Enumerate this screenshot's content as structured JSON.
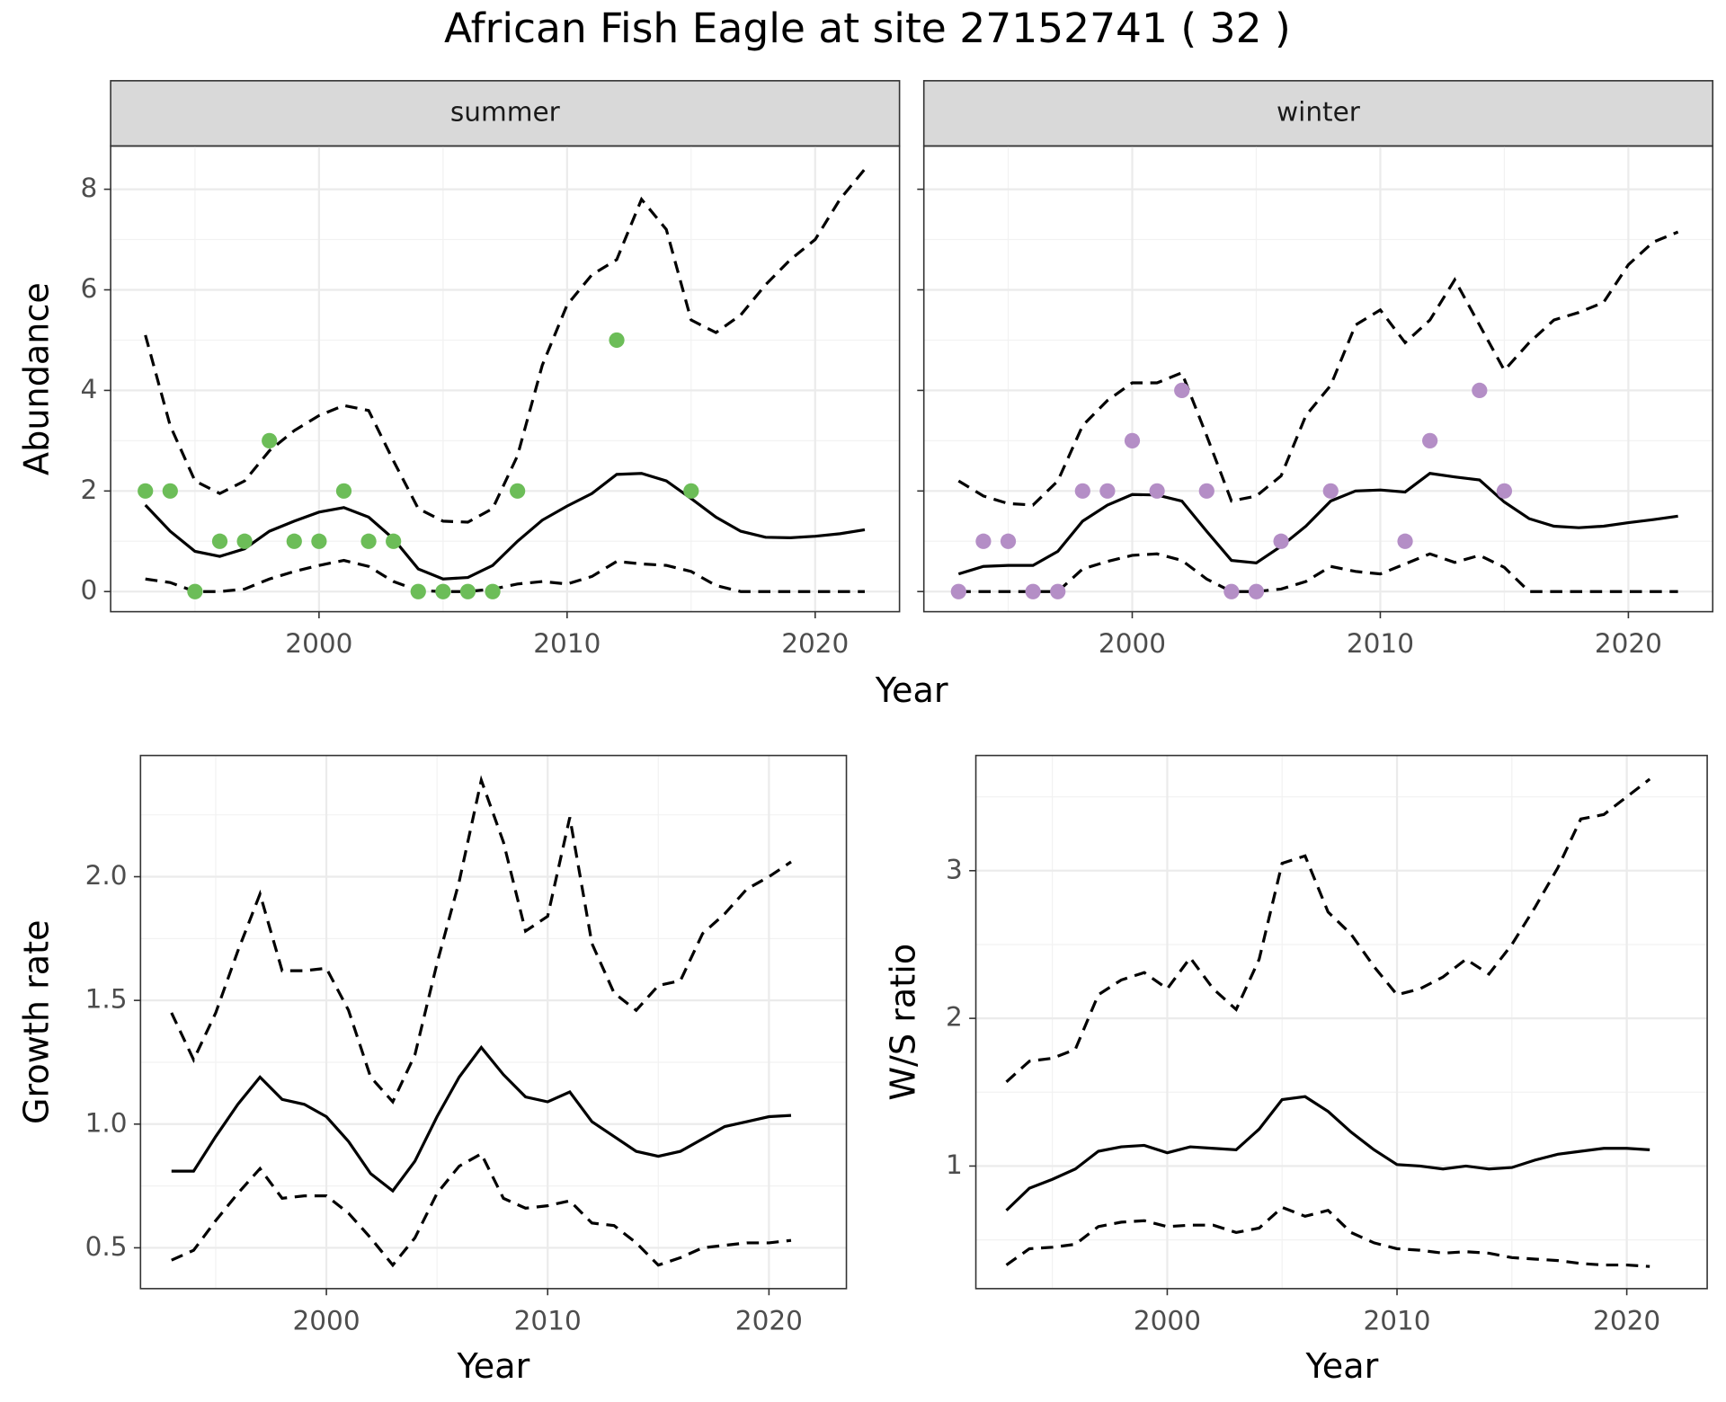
{
  "title": "African Fish Eagle at site 27152741 ( 32 )",
  "chart_data": [
    {
      "type": "line",
      "strip": "summer",
      "xlabel": "Year",
      "ylabel": "Abundance",
      "xlim": [
        1991.6,
        2023.4
      ],
      "xticks": [
        2000,
        2010,
        2020
      ],
      "ylim": [
        -0.4,
        8.86
      ],
      "yticks": [
        0,
        2,
        4,
        6,
        8
      ],
      "grid": true,
      "x": [
        1993,
        1994,
        1995,
        1996,
        1997,
        1998,
        1999,
        2000,
        2001,
        2002,
        2003,
        2004,
        2005,
        2006,
        2007,
        2008,
        2009,
        2010,
        2011,
        2012,
        2013,
        2014,
        2015,
        2016,
        2017,
        2018,
        2019,
        2020,
        2021,
        2022
      ],
      "series": [
        {
          "style": "solid",
          "color": "#000000",
          "values": [
            1.72,
            1.2,
            0.8,
            0.7,
            0.85,
            1.2,
            1.4,
            1.58,
            1.67,
            1.48,
            1.05,
            0.45,
            0.25,
            0.28,
            0.52,
            1.0,
            1.42,
            1.7,
            1.95,
            2.33,
            2.35,
            2.2,
            1.85,
            1.48,
            1.2,
            1.08,
            1.07,
            1.1,
            1.15,
            1.23
          ]
        },
        {
          "style": "dashed",
          "color": "#000000",
          "values": [
            5.1,
            3.3,
            2.2,
            1.95,
            2.2,
            2.8,
            3.2,
            3.5,
            3.7,
            3.6,
            2.6,
            1.65,
            1.4,
            1.38,
            1.65,
            2.7,
            4.5,
            5.7,
            6.3,
            6.6,
            7.8,
            7.2,
            5.4,
            5.15,
            5.5,
            6.1,
            6.6,
            7.0,
            7.8,
            8.4
          ]
        },
        {
          "style": "dashed",
          "color": "#000000",
          "values": [
            0.25,
            0.18,
            0,
            0,
            0.05,
            0.25,
            0.4,
            0.52,
            0.62,
            0.5,
            0.2,
            0.02,
            0,
            0,
            0.05,
            0.15,
            0.2,
            0.15,
            0.3,
            0.6,
            0.55,
            0.52,
            0.4,
            0.12,
            0,
            0,
            0,
            0,
            0,
            0
          ]
        },
        {
          "style": "points",
          "color": "#6cbd58",
          "values": [
            2,
            2,
            0,
            1,
            1,
            3,
            1,
            1,
            2,
            1,
            1,
            0,
            0,
            0,
            0,
            2,
            null,
            null,
            null,
            5,
            null,
            null,
            2,
            null,
            null,
            null,
            null,
            null,
            null,
            null
          ]
        }
      ]
    },
    {
      "type": "line",
      "strip": "winter",
      "xlim": [
        1991.6,
        2023.4
      ],
      "xticks": [
        2000,
        2010,
        2020
      ],
      "ylim": [
        -0.4,
        8.86
      ],
      "yticks": [
        0,
        2,
        4,
        6,
        8
      ],
      "grid": true,
      "x": [
        1993,
        1994,
        1995,
        1996,
        1997,
        1998,
        1999,
        2000,
        2001,
        2002,
        2003,
        2004,
        2005,
        2006,
        2007,
        2008,
        2009,
        2010,
        2011,
        2012,
        2013,
        2014,
        2015,
        2016,
        2017,
        2018,
        2019,
        2020,
        2021,
        2022
      ],
      "series": [
        {
          "style": "solid",
          "color": "#000000",
          "values": [
            0.35,
            0.5,
            0.52,
            0.52,
            0.8,
            1.4,
            1.72,
            1.93,
            1.92,
            1.8,
            1.2,
            0.62,
            0.57,
            0.9,
            1.3,
            1.8,
            2.0,
            2.02,
            1.98,
            2.35,
            2.28,
            2.22,
            1.78,
            1.45,
            1.3,
            1.27,
            1.3,
            1.37,
            1.43,
            1.5
          ]
        },
        {
          "style": "dashed",
          "color": "#000000",
          "values": [
            2.2,
            1.9,
            1.75,
            1.72,
            2.2,
            3.3,
            3.8,
            4.15,
            4.15,
            4.35,
            3.1,
            1.8,
            1.9,
            2.3,
            3.5,
            4.1,
            5.3,
            5.6,
            4.95,
            5.4,
            6.2,
            5.3,
            4.4,
            4.95,
            5.4,
            5.55,
            5.75,
            6.5,
            6.95,
            7.15
          ]
        },
        {
          "style": "dashed",
          "color": "#000000",
          "values": [
            0,
            0,
            0,
            0,
            0,
            0.45,
            0.6,
            0.72,
            0.75,
            0.62,
            0.25,
            0,
            0,
            0.05,
            0.2,
            0.5,
            0.4,
            0.35,
            0.55,
            0.75,
            0.58,
            0.72,
            0.48,
            0,
            0,
            0,
            0,
            0,
            0,
            0
          ]
        },
        {
          "style": "points",
          "color": "#b48ec6",
          "values": [
            0,
            1,
            1,
            0,
            0,
            2,
            2,
            3,
            2,
            4,
            2,
            0,
            0,
            1,
            null,
            2,
            null,
            null,
            1,
            3,
            null,
            4,
            2,
            null,
            null,
            null,
            null,
            null,
            null,
            null
          ]
        }
      ]
    },
    {
      "type": "line",
      "xlabel": "Year",
      "ylabel": "Growth rate",
      "xlim": [
        1991.6,
        2023.5
      ],
      "xticks": [
        2000,
        2010,
        2020
      ],
      "ylim": [
        0.335,
        2.49
      ],
      "yticks": [
        0.5,
        {
          "value": 1,
          "label": "1.0"
        },
        1.5,
        {
          "value": 2,
          "label": "2.0"
        }
      ],
      "grid": true,
      "x": [
        1993,
        1994,
        1995,
        1996,
        1997,
        1998,
        1999,
        2000,
        2001,
        2002,
        2003,
        2004,
        2005,
        2006,
        2007,
        2008,
        2009,
        2010,
        2011,
        2012,
        2013,
        2014,
        2015,
        2016,
        2017,
        2018,
        2019,
        2020,
        2021
      ],
      "series": [
        {
          "style": "solid",
          "color": "#000000",
          "values": [
            0.81,
            0.81,
            0.95,
            1.08,
            1.19,
            1.1,
            1.08,
            1.03,
            0.93,
            0.8,
            0.73,
            0.85,
            1.03,
            1.19,
            1.31,
            1.2,
            1.11,
            1.09,
            1.13,
            1.01,
            0.95,
            0.89,
            0.87,
            0.89,
            0.94,
            0.99,
            1.01,
            1.03,
            1.035
          ]
        },
        {
          "style": "dashed",
          "color": "#000000",
          "values": [
            1.45,
            1.26,
            1.45,
            1.7,
            1.93,
            1.62,
            1.62,
            1.63,
            1.46,
            1.19,
            1.09,
            1.28,
            1.65,
            1.98,
            2.39,
            2.14,
            1.78,
            1.84,
            2.24,
            1.73,
            1.53,
            1.46,
            1.56,
            1.58,
            1.77,
            1.85,
            1.95,
            2.0,
            2.06
          ]
        },
        {
          "style": "dashed",
          "color": "#000000",
          "values": [
            0.45,
            0.49,
            0.61,
            0.72,
            0.82,
            0.7,
            0.71,
            0.71,
            0.64,
            0.54,
            0.43,
            0.54,
            0.72,
            0.83,
            0.88,
            0.7,
            0.66,
            0.67,
            0.69,
            0.6,
            0.59,
            0.52,
            0.43,
            0.46,
            0.5,
            0.51,
            0.52,
            0.52,
            0.53
          ]
        }
      ]
    },
    {
      "type": "line",
      "xlabel": "Year",
      "ylabel": "W/S ratio",
      "xlim": [
        1991.67,
        2023.5
      ],
      "xticks": [
        2000,
        2010,
        2020
      ],
      "ylim": [
        0.17,
        3.78
      ],
      "yticks": [
        1,
        2,
        3
      ],
      "grid": true,
      "x": [
        1993,
        1994,
        1995,
        1996,
        1997,
        1998,
        1999,
        2000,
        2001,
        2002,
        2003,
        2004,
        2005,
        2006,
        2007,
        2008,
        2009,
        2010,
        2011,
        2012,
        2013,
        2014,
        2015,
        2016,
        2017,
        2018,
        2019,
        2020,
        2021
      ],
      "series": [
        {
          "style": "solid",
          "color": "#000000",
          "values": [
            0.7,
            0.85,
            0.91,
            0.98,
            1.1,
            1.13,
            1.14,
            1.09,
            1.13,
            1.12,
            1.11,
            1.25,
            1.45,
            1.47,
            1.37,
            1.23,
            1.11,
            1.01,
            1.0,
            0.98,
            1.0,
            0.98,
            0.99,
            1.04,
            1.08,
            1.1,
            1.12,
            1.12,
            1.11
          ]
        },
        {
          "style": "dashed",
          "color": "#000000",
          "values": [
            1.57,
            1.71,
            1.73,
            1.79,
            2.16,
            2.26,
            2.31,
            2.2,
            2.41,
            2.2,
            2.06,
            2.4,
            3.05,
            3.1,
            2.72,
            2.57,
            2.35,
            2.16,
            2.2,
            2.28,
            2.4,
            2.3,
            2.5,
            2.75,
            3.02,
            3.35,
            3.38,
            3.5,
            3.62
          ]
        },
        {
          "style": "dashed",
          "color": "#000000",
          "values": [
            0.33,
            0.44,
            0.45,
            0.47,
            0.59,
            0.62,
            0.63,
            0.59,
            0.6,
            0.6,
            0.55,
            0.58,
            0.72,
            0.66,
            0.7,
            0.55,
            0.48,
            0.44,
            0.43,
            0.41,
            0.42,
            0.41,
            0.38,
            0.37,
            0.36,
            0.34,
            0.33,
            0.33,
            0.32
          ]
        }
      ]
    }
  ]
}
